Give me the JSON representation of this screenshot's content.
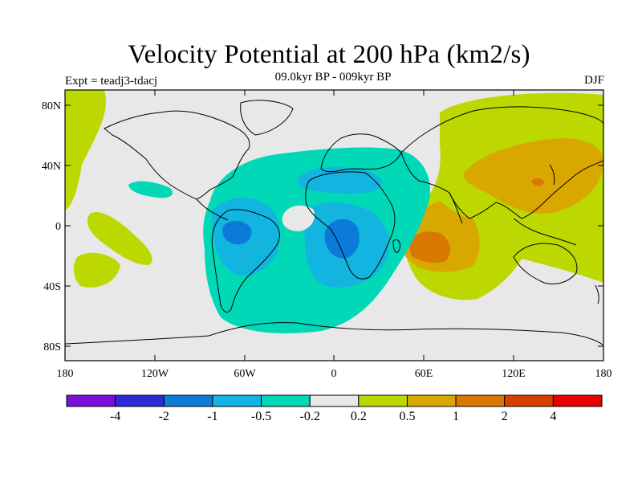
{
  "title": "Velocity Potential at 200 hPa (km2/s)",
  "subtitle": "09.0kyr BP - 009kyr BP",
  "experiment": "Expt = teadj3-tdacj",
  "season": "DJF",
  "axes": {
    "y_ticks": [
      "80N",
      "40N",
      "0",
      "40S",
      "80S"
    ],
    "x_ticks": [
      "180",
      "120W",
      "60W",
      "0",
      "60E",
      "120E",
      "180"
    ]
  },
  "colorbar": {
    "colors": [
      "#7a10d8",
      "#2a2cd8",
      "#0c7ad8",
      "#12b4e0",
      "#00d8b8",
      "#e8e8e8",
      "#bcd800",
      "#d8a800",
      "#d87800",
      "#d84000",
      "#e80000"
    ],
    "labels": [
      "-4",
      "-2",
      "-1",
      "-0.5",
      "-0.2",
      "0.2",
      "0.5",
      "1",
      "2",
      "4"
    ]
  },
  "map_colors": {
    "background": "#e8e8e8",
    "pos_weak": "#bcd800",
    "pos_mid": "#d8a800",
    "pos_strong": "#d87800",
    "neg_weak": "#00d8b8",
    "neg_mid": "#12b4e0",
    "neg_strong": "#0c7ad8"
  }
}
